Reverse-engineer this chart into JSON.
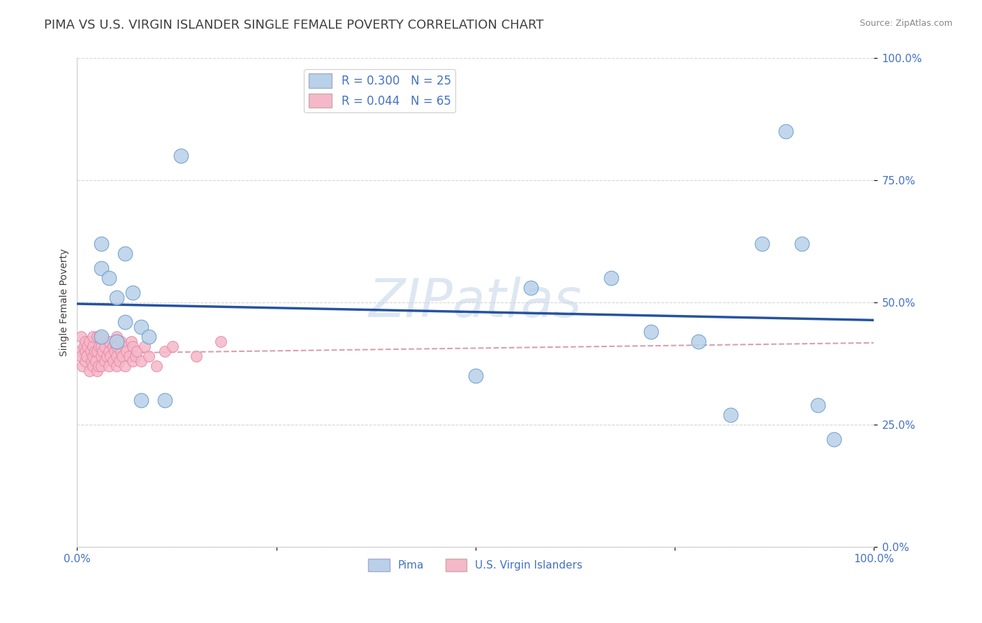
{
  "title": "PIMA VS U.S. VIRGIN ISLANDER SINGLE FEMALE POVERTY CORRELATION CHART",
  "source": "Source: ZipAtlas.com",
  "ylabel": "Single Female Poverty",
  "ytick_labels": [
    "0.0%",
    "25.0%",
    "50.0%",
    "75.0%",
    "100.0%"
  ],
  "ytick_values": [
    0,
    25,
    50,
    75,
    100
  ],
  "xlim": [
    0,
    100
  ],
  "ylim": [
    0,
    100
  ],
  "watermark": "ZIPatlas",
  "pima_color": "#b8d0e8",
  "pima_edge": "#6699cc",
  "vi_color": "#f5b8c8",
  "vi_edge": "#e888a8",
  "background_color": "#ffffff",
  "grid_color": "#cccccc",
  "axis_color": "#4472c4",
  "title_color": "#404040",
  "title_fontsize": 13,
  "label_fontsize": 10,
  "tick_fontsize": 11,
  "watermark_color": "#c8d8e8",
  "watermark_fontsize": 55,
  "pima_line_color": "#1a4a9a",
  "vi_line_color": "#d08898",
  "pima_x": [
    3,
    3,
    4,
    5,
    6,
    7,
    8,
    9,
    11,
    13,
    50,
    57,
    67,
    72,
    78,
    82,
    86,
    89,
    91,
    93,
    95,
    3,
    5,
    6,
    8
  ],
  "pima_y": [
    62,
    57,
    55,
    51,
    60,
    52,
    45,
    43,
    30,
    80,
    35,
    53,
    55,
    44,
    42,
    27,
    62,
    85,
    62,
    29,
    22,
    43,
    42,
    46,
    30
  ],
  "vi_x": [
    0.3,
    0.5,
    0.5,
    0.7,
    0.8,
    1.0,
    1.0,
    1.0,
    1.2,
    1.3,
    1.5,
    1.5,
    1.7,
    1.8,
    2.0,
    2.0,
    2.0,
    2.0,
    2.2,
    2.3,
    2.5,
    2.5,
    2.5,
    2.7,
    2.8,
    3.0,
    3.0,
    3.0,
    3.0,
    3.2,
    3.5,
    3.5,
    3.7,
    4.0,
    4.0,
    4.0,
    4.2,
    4.5,
    4.5,
    4.7,
    5.0,
    5.0,
    5.0,
    5.0,
    5.3,
    5.5,
    5.5,
    5.7,
    6.0,
    6.0,
    6.2,
    6.5,
    6.8,
    7.0,
    7.0,
    7.3,
    7.5,
    8.0,
    8.5,
    9.0,
    10.0,
    11.0,
    12.0,
    15.0,
    18.0
  ],
  "vi_y": [
    40,
    39,
    43,
    37,
    41,
    38,
    40,
    42,
    39,
    41,
    36,
    42,
    40,
    38,
    37,
    39,
    41,
    43,
    40,
    38,
    36,
    40,
    43,
    37,
    41,
    39,
    37,
    41,
    43,
    40,
    38,
    41,
    39,
    37,
    40,
    42,
    39,
    38,
    41,
    40,
    37,
    39,
    41,
    43,
    38,
    40,
    42,
    39,
    37,
    41,
    40,
    39,
    42,
    38,
    41,
    39,
    40,
    38,
    41,
    39,
    37,
    40,
    41,
    39,
    42
  ]
}
